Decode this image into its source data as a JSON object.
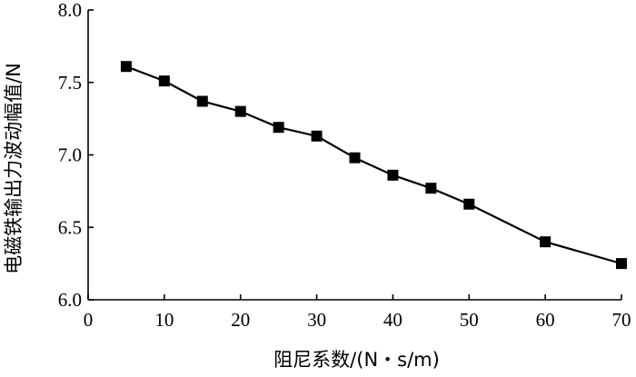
{
  "chart_data": {
    "type": "line",
    "title": "",
    "xlabel": "阻尼系数/(N・s/m)",
    "ylabel": "电磁铁输出力波动幅值/N",
    "xlim": [
      0,
      70
    ],
    "ylim": [
      6.0,
      8.0
    ],
    "xticks": [
      0,
      10,
      20,
      30,
      40,
      50,
      60,
      70
    ],
    "yticks": [
      6.0,
      6.5,
      7.0,
      7.5,
      8.0
    ],
    "xtick_labels": [
      "0",
      "10",
      "20",
      "30",
      "40",
      "50",
      "60",
      "70"
    ],
    "ytick_labels": [
      "6.0",
      "6.5",
      "7.0",
      "7.5",
      "8.0"
    ],
    "grid": false,
    "series": [
      {
        "marker": "square",
        "color": "#000000",
        "x": [
          5,
          10,
          15,
          20,
          25,
          30,
          35,
          40,
          45,
          50,
          60,
          70
        ],
        "y": [
          7.61,
          7.51,
          7.37,
          7.3,
          7.19,
          7.13,
          6.98,
          6.86,
          6.77,
          6.66,
          6.4,
          6.25
        ]
      }
    ]
  }
}
